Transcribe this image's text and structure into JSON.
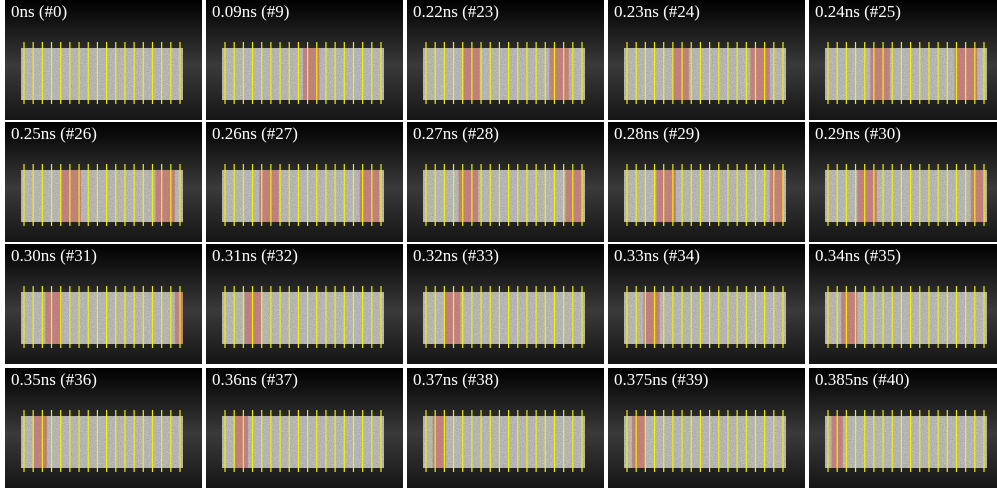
{
  "panels": [
    {
      "label": "0ns (#0)"
    },
    {
      "label": "0.09ns (#9)"
    },
    {
      "label": "0.22ns (#23)"
    },
    {
      "label": "0.23ns (#24)"
    },
    {
      "label": "0.24ns (#25)"
    },
    {
      "label": "0.25ns (#26)"
    },
    {
      "label": "0.26ns (#27)"
    },
    {
      "label": "0.27ns (#28)"
    },
    {
      "label": "0.28ns (#29)"
    },
    {
      "label": "0.29ns (#30)"
    },
    {
      "label": "0.30ns (#31)"
    },
    {
      "label": "0.31ns (#32)"
    },
    {
      "label": "0.32ns (#33)"
    },
    {
      "label": "0.33ns (#34)"
    },
    {
      "label": "0.34ns (#35)"
    },
    {
      "label": "0.35ns (#36)"
    },
    {
      "label": "0.36ns (#37)"
    },
    {
      "label": "0.37ns (#38)"
    },
    {
      "label": "0.375ns (#39)"
    },
    {
      "label": "0.385ns (#40)"
    }
  ]
}
